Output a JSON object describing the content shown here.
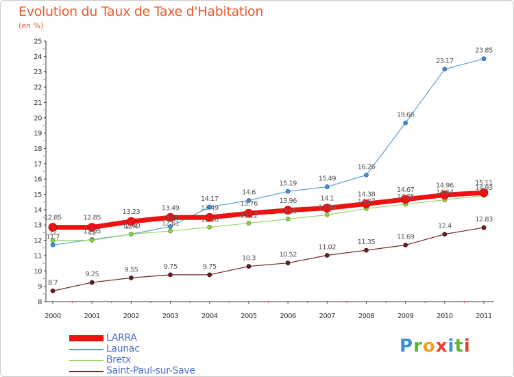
{
  "header": {
    "title": "Evolution du Taux de Taxe d'Habitation",
    "subtitle": "(en %)"
  },
  "logo": {
    "letters": [
      {
        "char": "P",
        "color": "#3a8fd6"
      },
      {
        "char": "r",
        "color": "#5cb82e"
      },
      {
        "char": "o",
        "color": "#f0a020"
      },
      {
        "char": "x",
        "color": "#e84030"
      },
      {
        "char": "i",
        "color": "#3a8fd6"
      },
      {
        "char": "t",
        "color": "#5cb82e"
      },
      {
        "char": "i",
        "color": "#e84030"
      }
    ]
  },
  "chart_data": {
    "type": "line",
    "title": "Evolution du Taux de Taxe d'Habitation",
    "ylabel": "(en %)",
    "xlabel": "",
    "x": [
      "2000",
      "2001",
      "2002",
      "2003",
      "2004",
      "2005",
      "2006",
      "2007",
      "2008",
      "2009",
      "2010",
      "2011"
    ],
    "ylim": [
      8,
      25
    ],
    "yticks": [
      8,
      9,
      10,
      11,
      12,
      13,
      14,
      15,
      16,
      17,
      18,
      19,
      20,
      21,
      22,
      23,
      24,
      25
    ],
    "grid": false,
    "legend": "bottom-left",
    "series": [
      {
        "name": "Launac",
        "color": "#5a9ed6",
        "values": [
          11.7,
          12.05,
          12.4,
          12.9,
          14.17,
          14.6,
          15.19,
          15.49,
          16.26,
          19.66,
          23.17,
          23.85
        ],
        "labels": [
          "11.7",
          "12.05",
          "12.40",
          "12.9",
          "14.17",
          "14.6",
          "15.19",
          "15.49",
          "16.26",
          "19.66",
          "23.17",
          "23.85"
        ]
      },
      {
        "name": "Bretx",
        "color": "#9dd66b",
        "values": [
          12.0,
          12.0,
          12.4,
          12.61,
          12.86,
          13.12,
          13.39,
          13.66,
          14.07,
          14.35,
          14.64,
          14.93
        ],
        "labels": [
          "12",
          "12",
          "12.4",
          "12.61",
          "12.86",
          "13.12",
          "13.39",
          "13.66",
          "14.07",
          "14.35",
          "14.64",
          "14.93"
        ]
      },
      {
        "name": "Saint-Paul-sur-Save",
        "color": "#6b2a2a",
        "values": [
          8.7,
          9.25,
          9.55,
          9.75,
          9.75,
          10.3,
          10.52,
          11.02,
          11.35,
          11.69,
          12.4,
          12.83
        ],
        "labels": [
          "8.7",
          "9.25",
          "9.55",
          "9.75",
          "9.75",
          "10.3",
          "10.52",
          "11.02",
          "11.35",
          "11.69",
          "12.4",
          "12.83"
        ]
      },
      {
        "name": "LARRA",
        "color": "#ee1111",
        "values": [
          12.85,
          12.85,
          13.23,
          13.49,
          13.49,
          13.76,
          13.96,
          14.1,
          14.38,
          14.67,
          14.96,
          15.11
        ],
        "labels": [
          "12.85",
          "12.85",
          "13.23",
          "13.49",
          "13.49",
          "13.76",
          "13.96",
          "14.1",
          "14.38",
          "14.67",
          "14.96",
          "15.11"
        ]
      }
    ],
    "legend_order": [
      "LARRA",
      "Launac",
      "Bretx",
      "Saint-Paul-sur-Save"
    ]
  }
}
